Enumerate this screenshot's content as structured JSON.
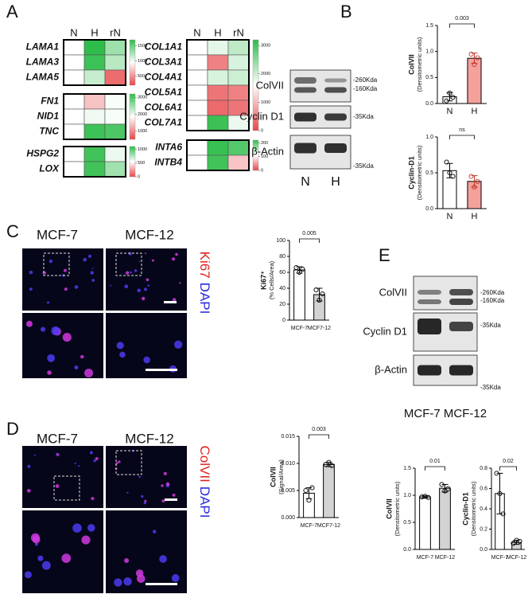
{
  "panels": [
    "A",
    "B",
    "C",
    "D",
    "E"
  ],
  "heatmap": {
    "columns": [
      "N",
      "H",
      "rN"
    ],
    "blocks": [
      {
        "rows": [
          "LAMA1",
          "LAMA3",
          "LAMA5"
        ],
        "values": [
          [
            950,
            1700,
            1300
          ],
          [
            950,
            1650,
            1200
          ],
          [
            950,
            1150,
            350
          ]
        ],
        "clim": [
          200,
          1700
        ],
        "cticks": [
          500,
          1000,
          1500
        ]
      },
      {
        "rows": [
          "FN1",
          "NID1",
          "TNC"
        ],
        "values": [
          [
            1850,
            1400,
            1900
          ],
          [
            1850,
            1950,
            1900
          ],
          [
            1850,
            3100,
            3000
          ]
        ],
        "clim": [
          500,
          3200
        ],
        "cticks": [
          1000,
          2000,
          3000
        ]
      },
      {
        "rows": [
          "HSPG2",
          "LOX"
        ],
        "values": [
          [
            550,
            1050,
            600
          ],
          [
            550,
            1050,
            800
          ]
        ],
        "clim": [
          0,
          1100
        ],
        "cticks": [
          0,
          500,
          1000
        ]
      },
      {
        "rows": [
          "COL1A1",
          "COL3A1",
          "COL4A1",
          "COL5A1",
          "COL6A1",
          "COL7A1"
        ],
        "values": [
          [
            1600,
            1800,
            2100
          ],
          [
            1600,
            500,
            1900
          ],
          [
            1600,
            1900,
            2000
          ],
          [
            1600,
            400,
            500
          ],
          [
            1600,
            300,
            400
          ],
          [
            1600,
            3100,
            1750
          ]
        ],
        "clim": [
          0,
          3200
        ],
        "cticks": [
          0,
          1000,
          2000,
          3000
        ]
      },
      {
        "rows": [
          "INTA6",
          "INTB4"
        ],
        "values": [
          [
            110,
            215,
            200
          ],
          [
            110,
            210,
            75
          ]
        ],
        "clim": [
          0,
          220
        ],
        "cticks": [
          0,
          100,
          200
        ]
      }
    ]
  },
  "blot_b": {
    "rows": [
      "ColVII",
      "Cyclin D1",
      "β-Actin"
    ],
    "markers": [
      "-260Kda",
      "-160Kda",
      "-35Kda",
      "-35Kda"
    ],
    "lanes": [
      "N",
      "H"
    ]
  },
  "blot_e": {
    "rows": [
      "ColVII",
      "Cyclin D1",
      "β-Actin"
    ],
    "markers": [
      "-260Kda",
      "-160Kda",
      "-35Kda",
      "-35Kda"
    ],
    "lanes": "MCF-7 MCF-12"
  },
  "microscopy_c": {
    "columns": [
      "MCF-7",
      "MCF-12"
    ],
    "stain": [
      "Ki67",
      "DAPI"
    ]
  },
  "microscopy_d": {
    "columns": [
      "MCF-7",
      "MCF-12"
    ],
    "stain": [
      "ColVII",
      "DAPI"
    ]
  },
  "chart_data": [
    {
      "type": "bar",
      "y_label": "ColVII",
      "y_label_sub": "(Densitometric units)",
      "categories": [
        "N",
        "H"
      ],
      "values": [
        0.13,
        0.87
      ],
      "errors": [
        0.08,
        0.1
      ],
      "points": [
        [
          0.05,
          0.2,
          0.12
        ],
        [
          0.95,
          0.75,
          0.88
        ]
      ],
      "colors": [
        "#ffffff",
        "#f4a19c"
      ],
      "ylim": [
        0,
        1.5
      ],
      "yticks": [
        {
          "value": 0,
          "label": "0.0"
        },
        0.5,
        {
          "value": 1,
          "label": "1.0"
        },
        1.5
      ],
      "p_value": "0.003"
    },
    {
      "type": "bar",
      "y_label": "Cyclin-D1",
      "y_label_sub": "(Densitometric units)",
      "categories": [
        "N",
        "H"
      ],
      "values": [
        0.53,
        0.38
      ],
      "errors": [
        0.1,
        0.08
      ],
      "points": [
        [
          0.65,
          0.5,
          0.45
        ],
        [
          0.45,
          0.3,
          0.38
        ]
      ],
      "colors": [
        "#ffffff",
        "#f4a19c"
      ],
      "ylim": [
        0,
        1
      ],
      "yticks": [
        {
          "value": 0,
          "label": "0.0"
        },
        0.5,
        {
          "value": 1,
          "label": "1.0"
        }
      ],
      "p_value": "ns"
    },
    {
      "type": "bar",
      "y_label": "Ki67⁺",
      "y_label_sub": "(% Cells/Area)",
      "categories": [
        "MCF-7",
        "MCF7-12"
      ],
      "values": [
        63,
        32
      ],
      "errors": [
        4,
        8
      ],
      "points": [
        [
          66,
          60,
          64
        ],
        [
          38,
          25,
          33
        ]
      ],
      "colors": [
        "#ffffff",
        "#d3d3d3"
      ],
      "ylim": [
        0,
        100
      ],
      "yticks": [
        0,
        20,
        40,
        60,
        80,
        100
      ],
      "p_value": "0.005"
    },
    {
      "type": "bar",
      "y_label": "ColVII",
      "y_label_sub": "(Signal/Area)",
      "categories": [
        "MCF-7",
        "MCF7-12"
      ],
      "values": [
        0.0045,
        0.0098
      ],
      "errors": [
        0.001,
        0.0004
      ],
      "points": [
        [
          0.005,
          0.0032,
          0.0055
        ],
        [
          0.0098,
          0.0102,
          0.0096
        ]
      ],
      "colors": [
        "#ffffff",
        "#d3d3d3"
      ],
      "ylim": [
        0,
        0.015
      ],
      "yticks": [
        {
          "value": 0,
          "label": "0.000"
        },
        0.005,
        {
          "value": 0.01,
          "label": "0.010"
        },
        0.015
      ],
      "p_value": "0.003"
    },
    {
      "type": "bar",
      "y_label": "ColVII",
      "y_label_sub": "(Densitometric units)",
      "categories": [
        "MCF-7",
        "MCF-12"
      ],
      "values": [
        0.97,
        1.13
      ],
      "errors": [
        0.02,
        0.07
      ],
      "points": [
        [
          0.97,
          0.98,
          0.96
        ],
        [
          1.2,
          1.08,
          1.12
        ]
      ],
      "colors": [
        "#ffffff",
        "#d3d3d3"
      ],
      "ylim": [
        0,
        1.5
      ],
      "yticks": [
        {
          "value": 0,
          "label": "0.0"
        },
        0.5,
        {
          "value": 1,
          "label": "1.0"
        },
        1.5
      ],
      "p_value": "0.01"
    },
    {
      "type": "bar",
      "y_label": "Cyclin-D1",
      "y_label_sub": "(Densitometric units)",
      "categories": [
        "MCF-7",
        "MCF-12"
      ],
      "values": [
        0.55,
        0.07
      ],
      "errors": [
        0.2,
        0.02
      ],
      "points": [
        [
          0.75,
          0.55,
          0.35
        ],
        [
          0.06,
          0.09,
          0.08
        ]
      ],
      "colors": [
        "#ffffff",
        "#d3d3d3"
      ],
      "ylim": [
        0,
        0.8
      ],
      "yticks": [
        {
          "value": 0,
          "label": "0.0"
        },
        0.2,
        0.4,
        0.6,
        0.8
      ],
      "p_value": "0.02"
    }
  ]
}
